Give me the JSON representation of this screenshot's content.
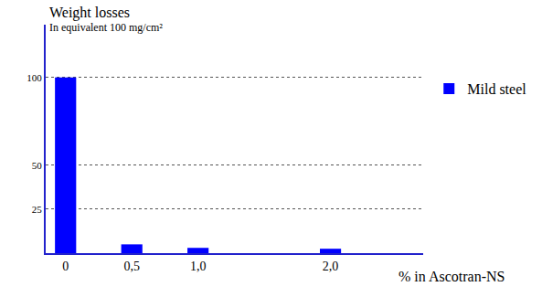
{
  "chart_data": {
    "type": "bar",
    "y_label": "Weight losses",
    "annotations": [
      "In equivalent 100 mg/cm²"
    ],
    "x_label": "% in Ascotran-NS",
    "x": [
      0,
      0.5,
      1,
      2
    ],
    "series": [
      {
        "name": "Mild steel",
        "color": "#0000ff",
        "values": [
          100,
          5,
          3,
          2.5
        ]
      }
    ],
    "xlim": [
      -0.15,
      2.7
    ],
    "xticks": [
      {
        "value": 0,
        "label": "0"
      },
      {
        "value": 0.5,
        "label": "0,5"
      },
      {
        "value": 1,
        "label": "1,0"
      },
      {
        "value": 2,
        "label": "2,0"
      }
    ],
    "ylim": [
      0,
      130
    ],
    "yticks": [
      25,
      50,
      100
    ],
    "grid": true,
    "legend": "right"
  }
}
